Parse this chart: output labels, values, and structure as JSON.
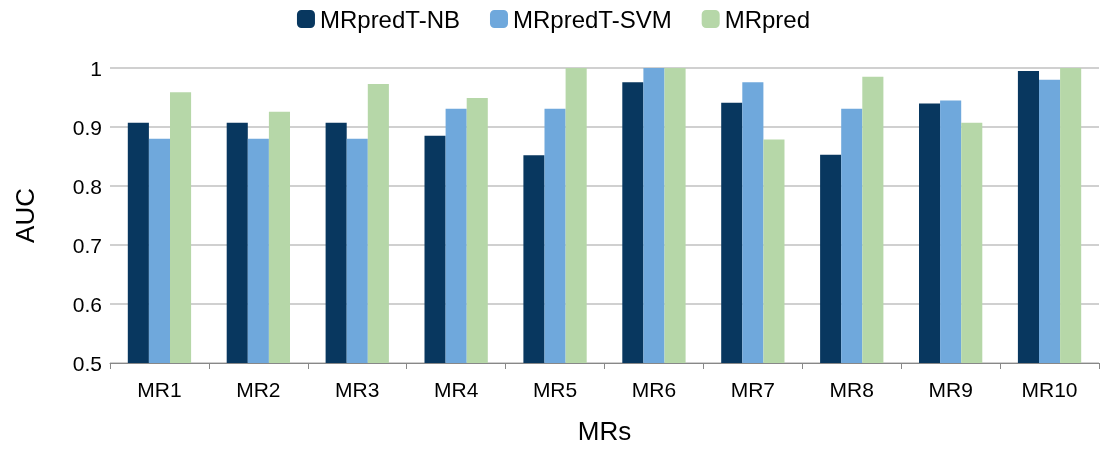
{
  "chart_data": {
    "type": "bar",
    "xlabel": "MRs",
    "ylabel": "AUC",
    "categories": [
      "MR1",
      "MR2",
      "MR3",
      "MR4",
      "MR5",
      "MR6",
      "MR7",
      "MR8",
      "MR9",
      "MR10"
    ],
    "series": [
      {
        "name": "MRpredT-NB",
        "color": "#08375f",
        "values": [
          0.907,
          0.907,
          0.907,
          0.885,
          0.852,
          0.976,
          0.941,
          0.853,
          0.94,
          0.995
        ]
      },
      {
        "name": "MRpredT-SVM",
        "color": "#6fa8dc",
        "values": [
          0.88,
          0.88,
          0.88,
          0.931,
          0.931,
          1.0,
          0.976,
          0.931,
          0.945,
          0.98
        ]
      },
      {
        "name": "MRpred",
        "color": "#b6d7a8",
        "values": [
          0.959,
          0.926,
          0.973,
          0.949,
          1.0,
          1.0,
          0.879,
          0.985,
          0.907,
          1.0
        ]
      }
    ],
    "ylim": [
      0.5,
      1
    ],
    "yticks": [
      0.5,
      0.6,
      0.7,
      0.8,
      0.9,
      1
    ],
    "grid": "y",
    "legend": "top"
  }
}
